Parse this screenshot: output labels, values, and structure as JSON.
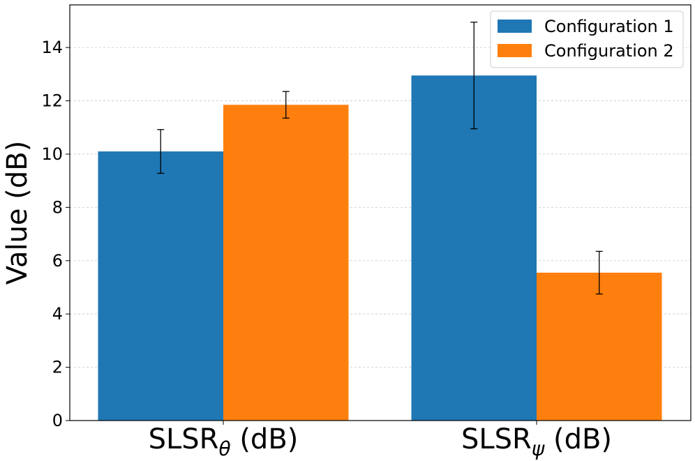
{
  "chart_data": {
    "type": "bar",
    "title": "",
    "xlabel": "",
    "ylabel": "Value (dB)",
    "categories": [
      {
        "base": "SLSR",
        "sub": "θ",
        "suffix": " (dB)"
      },
      {
        "base": "SLSR",
        "sub": "ψ",
        "suffix": " (dB)"
      }
    ],
    "series": [
      {
        "name": "Configuration 1",
        "color": "#1f77b4",
        "values": [
          10.1,
          12.95
        ],
        "errors": [
          0.82,
          2.0
        ]
      },
      {
        "name": "Configuration 2",
        "color": "#ff7f0e",
        "values": [
          11.85,
          5.55
        ],
        "errors": [
          0.5,
          0.8
        ]
      }
    ],
    "ylim": [
      0,
      15.6
    ],
    "yticks": [
      0,
      2,
      4,
      6,
      8,
      10,
      12,
      14
    ],
    "grid": true,
    "legend_position": "top-right"
  }
}
